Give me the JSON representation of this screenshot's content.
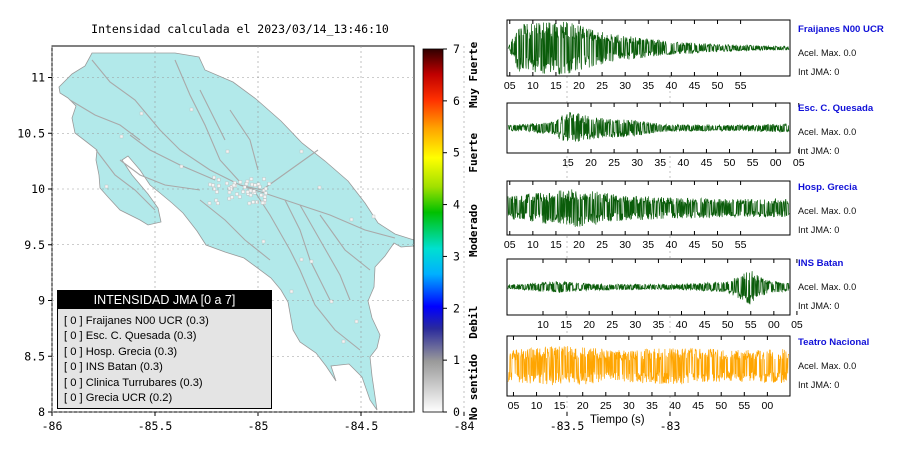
{
  "map": {
    "title": "Intensidad calculada el 2023/03/14_13:46:10",
    "lon_ticks": [
      "-86",
      "-85.5",
      "-85",
      "-84.5",
      "-84",
      "-83.5",
      "-83"
    ],
    "lat_ticks": [
      "11",
      "10.5",
      "10",
      "9.5",
      "9",
      "8.5",
      "8"
    ],
    "land_color": "#b2e9ea",
    "sea_color": "#ffffff",
    "road_color": "#a9a9a9"
  },
  "colorbar": {
    "ticks": [
      "0",
      "1",
      "2",
      "3",
      "4",
      "5",
      "6",
      "7"
    ],
    "labels": [
      "No sentido",
      "Debil",
      "Moderado",
      "Fuerte",
      "Muy Fuerte"
    ]
  },
  "legend": {
    "title": "INTENSIDAD JMA [0 a 7]",
    "rows": [
      "[ 0 ]  Fraijanes N00 UCR (0.3)",
      "[ 0 ]  Esc. C. Quesada (0.3)",
      "[ 0 ]  Hosp. Grecia (0.3)",
      "[ 0 ]  INS Batan (0.3)",
      "[ 0 ]  Clinica Turrubares (0.3)",
      "[ 0 ]  Grecia UCR (0.2)"
    ]
  },
  "stations": [
    {
      "name": "Fraijanes N00 UCR",
      "acel": "Acel. Max. 0.0",
      "jma": "Int JMA: 0",
      "color": "#0a5c0a",
      "ticks": [
        "05",
        "10",
        "15",
        "20",
        "25",
        "30",
        "35",
        "40",
        "45",
        "50",
        "55"
      ]
    },
    {
      "name": "Esc. C. Quesada",
      "acel": "Acel. Max. 0.0",
      "jma": "Int JMA: 0",
      "color": "#0a5c0a",
      "ticks": [
        "15",
        "20",
        "25",
        "30",
        "35",
        "40",
        "45",
        "50",
        "55",
        "00",
        "05"
      ]
    },
    {
      "name": "Hosp. Grecia",
      "acel": "Acel. Max. 0.0",
      "jma": "Int JMA: 0",
      "color": "#0a5c0a",
      "ticks": [
        "05",
        "10",
        "15",
        "20",
        "25",
        "30",
        "35",
        "40",
        "45",
        "50",
        "55"
      ]
    },
    {
      "name": "INS Batan",
      "acel": "Acel. Max. 0.0",
      "jma": "Int JMA: 0",
      "color": "#0a5c0a",
      "ticks": [
        "10",
        "15",
        "20",
        "25",
        "30",
        "35",
        "40",
        "45",
        "50",
        "55",
        "00",
        "05"
      ]
    },
    {
      "name": "Teatro Nacional",
      "acel": "Acel. Max. 0.0",
      "jma": "Int JMA: 0",
      "color": "#ffa500",
      "ticks": [
        "05",
        "10",
        "15",
        "20",
        "25",
        "30",
        "35",
        "40",
        "45",
        "50",
        "55",
        "00"
      ]
    }
  ],
  "xlabel": "Tiempo (s)",
  "chart_data": {
    "type": "line",
    "title": "",
    "xlabel": "Tiempo (s)",
    "ylabel": "",
    "series": [
      {
        "name": "Fraijanes N00 UCR",
        "acel_max": 0.0,
        "int_jma": 0
      },
      {
        "name": "Esc. C. Quesada",
        "acel_max": 0.0,
        "int_jma": 0
      },
      {
        "name": "Hosp. Grecia",
        "acel_max": 0.0,
        "int_jma": 0
      },
      {
        "name": "INS Batan",
        "acel_max": 0.0,
        "int_jma": 0
      },
      {
        "name": "Teatro Nacional",
        "acel_max": 0.0,
        "int_jma": 0
      }
    ],
    "intensity_scale": {
      "min": 0,
      "max": 7
    }
  }
}
